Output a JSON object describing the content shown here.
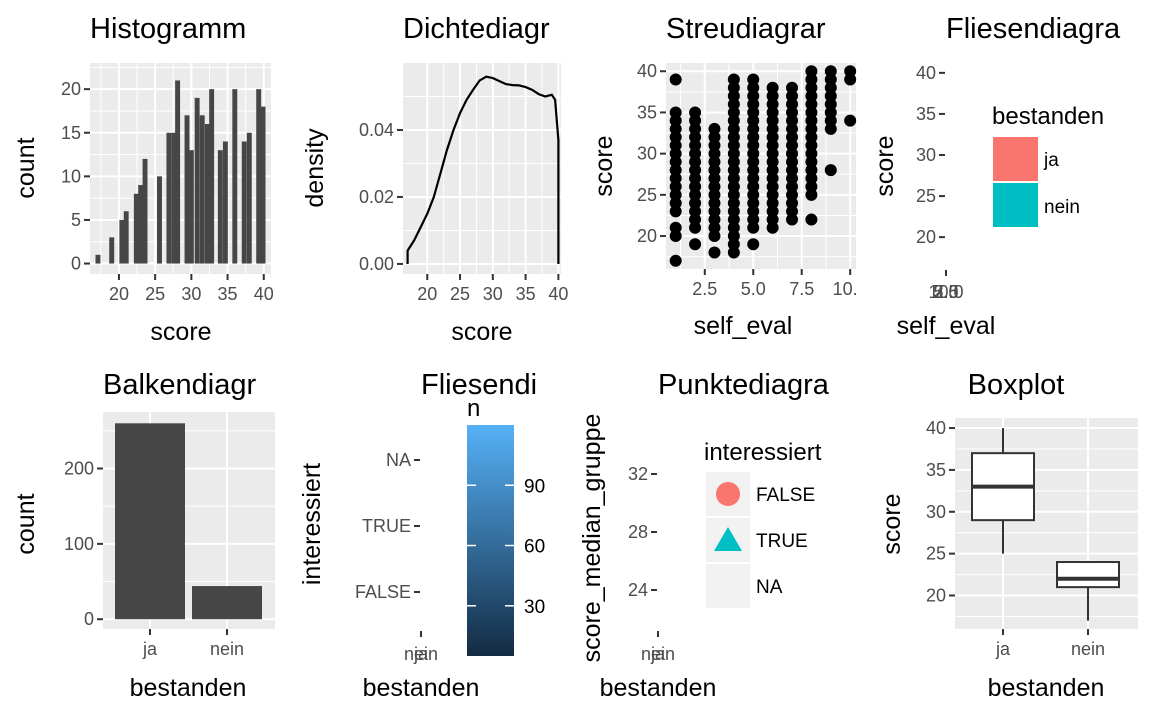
{
  "colors": {
    "bar": "#464646",
    "ja": "#F8766D",
    "nein": "#00BFC4",
    "panel": "#ebebeb",
    "grid": "#ffffff",
    "legend_key": "#f2f2f2",
    "point": "#000000"
  },
  "chart_data": [
    {
      "id": "histogramm",
      "type": "bar",
      "title": "Histogramm",
      "xlabel": "score",
      "ylabel": "count",
      "xlim": [
        16,
        41
      ],
      "ylim": [
        -1.2,
        23
      ],
      "xticks": [
        "20",
        "25",
        "30",
        "35",
        "40"
      ],
      "yticks": [
        "0",
        "5",
        "10",
        "15",
        "20"
      ],
      "bins": [
        [
          17.1,
          1
        ],
        [
          18.3,
          0
        ],
        [
          19.0,
          3
        ],
        [
          19.8,
          0
        ],
        [
          20.4,
          5
        ],
        [
          21.0,
          6
        ],
        [
          21.7,
          0
        ],
        [
          22.4,
          8
        ],
        [
          23.0,
          9
        ],
        [
          23.6,
          12
        ],
        [
          24.3,
          0
        ],
        [
          25.0,
          0
        ],
        [
          25.6,
          10
        ],
        [
          26.2,
          0
        ],
        [
          26.9,
          15
        ],
        [
          27.6,
          15
        ],
        [
          28.1,
          21
        ],
        [
          28.8,
          0
        ],
        [
          29.4,
          17
        ],
        [
          30.0,
          13
        ],
        [
          30.8,
          19
        ],
        [
          31.5,
          17
        ],
        [
          32.2,
          16
        ],
        [
          32.8,
          20
        ],
        [
          33.4,
          0
        ],
        [
          34.0,
          13
        ],
        [
          34.7,
          14
        ],
        [
          35.4,
          0
        ],
        [
          36.0,
          20
        ],
        [
          36.7,
          0
        ],
        [
          37.3,
          14
        ],
        [
          38.0,
          15
        ],
        [
          38.6,
          0
        ],
        [
          39.3,
          20
        ],
        [
          39.9,
          18
        ]
      ]
    },
    {
      "id": "dichtediagramm",
      "type": "area",
      "title": "Dichtediagr",
      "xlabel": "score",
      "ylabel": "density",
      "xlim": [
        16.3,
        40.4
      ],
      "ylim": [
        -0.003,
        0.06
      ],
      "xticks": [
        "20",
        "25",
        "30",
        "35",
        "40"
      ],
      "yticks": [
        "0.00",
        "0.02",
        "0.04"
      ],
      "points": [
        [
          17,
          0
        ],
        [
          17,
          0.004
        ],
        [
          18,
          0.007
        ],
        [
          19,
          0.011
        ],
        [
          20,
          0.015
        ],
        [
          21,
          0.02
        ],
        [
          22,
          0.027
        ],
        [
          23,
          0.034
        ],
        [
          24,
          0.04
        ],
        [
          25,
          0.045
        ],
        [
          26,
          0.049
        ],
        [
          27,
          0.052
        ],
        [
          28,
          0.0548
        ],
        [
          29,
          0.0559
        ],
        [
          30,
          0.0555
        ],
        [
          31,
          0.0546
        ],
        [
          32,
          0.0537
        ],
        [
          33,
          0.0534
        ],
        [
          34,
          0.0533
        ],
        [
          35,
          0.0528
        ],
        [
          36,
          0.052
        ],
        [
          37,
          0.0507
        ],
        [
          38,
          0.05
        ],
        [
          39,
          0.0505
        ],
        [
          39.5,
          0.049
        ],
        [
          40,
          0.037
        ],
        [
          40,
          0
        ]
      ]
    },
    {
      "id": "streudiagramm",
      "type": "scatter",
      "title": "Streudiagrar",
      "xlabel": "self_eval",
      "ylabel": "score",
      "xlim": [
        0.5,
        10.3
      ],
      "ylim": [
        16,
        41
      ],
      "xticks": [
        "2.5",
        "5.0",
        "7.5",
        "10.0"
      ],
      "yticks": [
        "20",
        "25",
        "30",
        "35",
        "40"
      ],
      "columns": [
        {
          "x": 1,
          "y": [
            17,
            20,
            21,
            23,
            24,
            25,
            26,
            27,
            28,
            29,
            30,
            31,
            32,
            33,
            34,
            35,
            39
          ]
        },
        {
          "x": 2,
          "y": [
            19,
            21,
            22,
            23,
            24,
            25,
            26,
            27,
            28,
            29,
            30,
            31,
            32,
            33,
            34,
            35
          ]
        },
        {
          "x": 3,
          "y": [
            18,
            20,
            21,
            22,
            23,
            24,
            25,
            26,
            27,
            28,
            29,
            30,
            31,
            32,
            33
          ]
        },
        {
          "x": 4,
          "y": [
            18,
            19,
            20,
            21,
            22,
            23,
            24,
            25,
            26,
            27,
            28,
            29,
            30,
            31,
            32,
            33,
            34,
            35,
            36,
            37,
            38,
            39
          ]
        },
        {
          "x": 5,
          "y": [
            19,
            21,
            22,
            23,
            24,
            25,
            26,
            27,
            28,
            29,
            30,
            31,
            32,
            33,
            34,
            35,
            36,
            37,
            38,
            39
          ]
        },
        {
          "x": 6,
          "y": [
            21,
            22,
            23,
            24,
            25,
            26,
            27,
            28,
            29,
            30,
            31,
            32,
            33,
            34,
            35,
            36,
            37,
            38
          ]
        },
        {
          "x": 7,
          "y": [
            22,
            23,
            24,
            25,
            26,
            27,
            28,
            29,
            30,
            31,
            32,
            33,
            34,
            35,
            36,
            37,
            38
          ]
        },
        {
          "x": 8,
          "y": [
            22,
            25,
            26,
            27,
            28,
            29,
            30,
            31,
            32,
            33,
            34,
            35,
            36,
            37,
            38,
            39,
            40
          ]
        },
        {
          "x": 9,
          "y": [
            28,
            33,
            34,
            35,
            36,
            37,
            38,
            39,
            40
          ]
        },
        {
          "x": 10,
          "y": [
            34,
            39,
            40
          ]
        }
      ]
    },
    {
      "id": "fliesendiagramm-1",
      "type": "heatmap",
      "title": "Fliesendiagra",
      "xlabel": "self_eval",
      "ylabel": "score",
      "ylim": [
        16,
        41.2
      ],
      "xticks_overlap": [
        "10.0",
        "2.5",
        "5.0",
        "7.5"
      ],
      "yticks": [
        "20",
        "25",
        "30",
        "35",
        "40"
      ],
      "legend": {
        "title": "bestanden",
        "items": [
          "ja",
          "nein"
        ]
      }
    },
    {
      "id": "balkendiagramm",
      "type": "bar",
      "title": "Balkendiagr",
      "xlabel": "bestanden",
      "ylabel": "count",
      "categories": [
        "ja",
        "nein"
      ],
      "values": [
        260,
        44
      ],
      "ylim": [
        -13,
        275
      ],
      "yticks": [
        "0",
        "100",
        "200"
      ]
    },
    {
      "id": "fliesendiagramm-2",
      "type": "heatmap",
      "title": "Fliesendi",
      "xlabel": "bestanden",
      "ylabel": "interessiert",
      "xticks_overlap": [
        "ja",
        "nein"
      ],
      "yticks": [
        "FALSE",
        "TRUE",
        "NA"
      ],
      "colorbar": {
        "title": "n",
        "ticks": [
          "30",
          "60",
          "90"
        ],
        "range": [
          5,
          120
        ],
        "tick_values": [
          30,
          60,
          90
        ],
        "low": "#132B43",
        "high": "#56B1F7"
      }
    },
    {
      "id": "punktediagramm",
      "type": "scatter",
      "title": "Punktediagra",
      "xlabel": "bestanden",
      "ylabel": "score_median_gruppe",
      "yticks": [
        "24",
        "28",
        "32"
      ],
      "xticks_overlap": [
        "ja",
        "nein"
      ],
      "legend": {
        "title": "interessiert",
        "items": [
          "FALSE",
          "TRUE",
          "NA"
        ]
      }
    },
    {
      "id": "boxplot",
      "type": "boxplot",
      "title": "Boxplot",
      "xlabel": "bestanden",
      "ylabel": "score",
      "categories": [
        "ja",
        "nein"
      ],
      "ylim": [
        16,
        41.2
      ],
      "yticks": [
        "20",
        "25",
        "30",
        "35",
        "40"
      ],
      "boxes": [
        {
          "min": 25,
          "q1": 29,
          "median": 33,
          "q3": 37,
          "max": 40
        },
        {
          "min": 17,
          "q1": 21,
          "median": 22,
          "q3": 24,
          "max": 24
        }
      ]
    }
  ]
}
